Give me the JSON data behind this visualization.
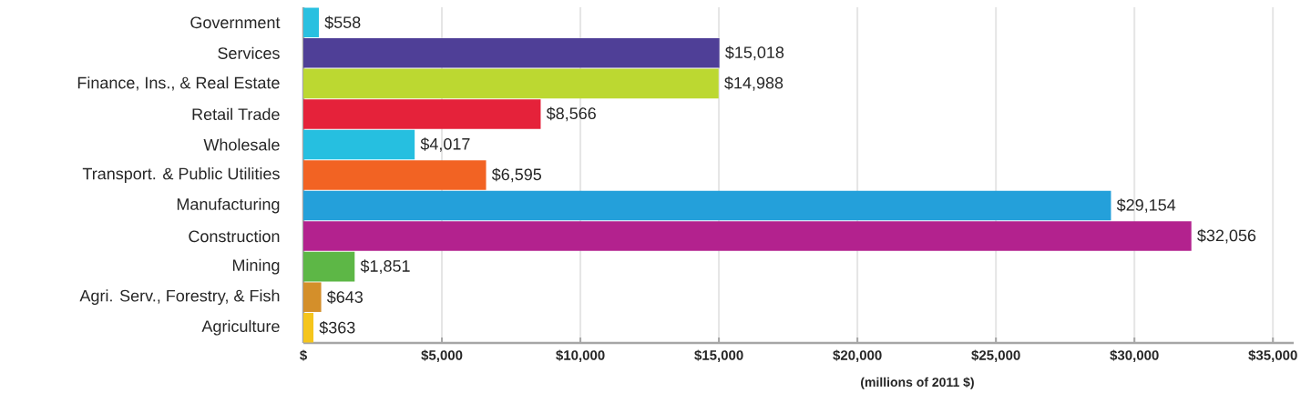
{
  "chart_data": {
    "type": "bar",
    "orientation": "horizontal",
    "xlabel": "(millions of 2011 $)",
    "categories": [
      "Government",
      "Services",
      "Finance, Ins., & Real Estate",
      "Retail Trade",
      "Wholesale",
      "Transport. & Public Utilities",
      "Manufacturing",
      "Construction",
      "Mining",
      "Agri. Serv., Forestry, & Fish",
      "Agriculture"
    ],
    "values": [
      558,
      15018,
      14988,
      8566,
      4017,
      6595,
      29154,
      32056,
      1851,
      643,
      363
    ],
    "value_labels": [
      "$558",
      "$15,018",
      "$14,988",
      "$8,566",
      "$4,017",
      "$6,595",
      "$29,154",
      "$32,056",
      "$1,851",
      "$643",
      "$363"
    ],
    "colors": [
      "#29c0e0",
      "#4f3f97",
      "#bcd831",
      "#e5223a",
      "#26bfe0",
      "#f26323",
      "#24a0da",
      "#b3228e",
      "#5db746",
      "#d48f2a",
      "#f5c51c"
    ],
    "xlim": [
      0,
      35750
    ],
    "xticks": [
      {
        "value": 0,
        "label": "$"
      },
      {
        "value": 5000,
        "label": "$5,000"
      },
      {
        "value": 10000,
        "label": "$10,000"
      },
      {
        "value": 15000,
        "label": "$15,000"
      },
      {
        "value": 20000,
        "label": "$20,000"
      },
      {
        "value": 25000,
        "label": "$25,000"
      },
      {
        "value": 30000,
        "label": "$30,000"
      },
      {
        "value": 35000,
        "label": "$35,000"
      }
    ],
    "grid": "x"
  }
}
